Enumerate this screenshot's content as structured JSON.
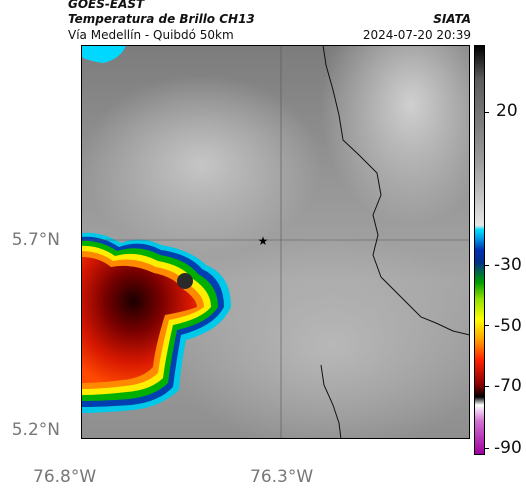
{
  "header": {
    "satellite": "GOES-EAST",
    "product": "Temperatura de Brillo CH13",
    "route": "Vía Medellín - Quibdó 50km",
    "org": "SIATA",
    "datetime": "2024-07-20 20:39"
  },
  "map": {
    "y_ticks": [
      "5.7°N",
      "5.2°N"
    ],
    "x_ticks": [
      "76.8°W",
      "76.3°W"
    ],
    "lat_range": [
      5.2,
      6.1
    ],
    "lon_range": [
      -76.8,
      -75.9
    ],
    "marker": "star-icon",
    "gridlines": true
  },
  "colorbar": {
    "ticks": [
      "20",
      "-30",
      "-50",
      "-70",
      "-90"
    ],
    "colors": {
      "warm": "#000000",
      "mid_gray": "#9a9a9a",
      "cyan": "#00e0ff",
      "blue": "#0030b0",
      "green": "#00a000",
      "yellow": "#ffff00",
      "orange": "#ffa000",
      "red": "#ff2000",
      "dark_red": "#8a0000",
      "magenta": "#a000a0"
    }
  }
}
